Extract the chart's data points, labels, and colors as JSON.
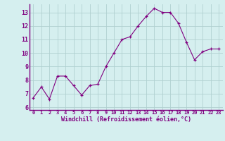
{
  "x": [
    0,
    1,
    2,
    3,
    4,
    5,
    6,
    7,
    8,
    9,
    10,
    11,
    12,
    13,
    14,
    15,
    16,
    17,
    18,
    19,
    20,
    21,
    22,
    23
  ],
  "y": [
    6.7,
    7.5,
    6.6,
    8.3,
    8.3,
    7.6,
    6.9,
    7.6,
    7.7,
    9.0,
    10.0,
    11.0,
    11.2,
    12.0,
    12.7,
    13.3,
    13.0,
    13.0,
    12.2,
    10.8,
    9.5,
    10.1,
    10.3,
    10.3
  ],
  "xlabel": "Windchill (Refroidissement éolien,°C)",
  "ylim": [
    5.8,
    13.6
  ],
  "yticks": [
    6,
    7,
    8,
    9,
    10,
    11,
    12,
    13
  ],
  "line_color": "#800080",
  "marker_color": "#800080",
  "bg_color": "#d5efef",
  "grid_color": "#b0d0d0",
  "tick_label_color": "#800080",
  "axis_label_color": "#800080"
}
